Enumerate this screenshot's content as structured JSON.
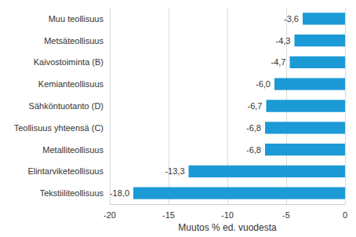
{
  "chart_data": {
    "type": "bar",
    "orientation": "horizontal",
    "categories": [
      "Muu teollisuus",
      "Metsäteollisuus",
      "Kaivostoiminta (B)",
      "Kemianteollisuus",
      "Sähköntuotanto (D)",
      "Teollisuus yhteensä (C)",
      "Metalliteollisuus",
      "Elintarviketeollisuus",
      "Tekstiiliteollisuus"
    ],
    "values": [
      -3.6,
      -4.3,
      -4.7,
      -6.0,
      -6.7,
      -6.8,
      -6.8,
      -13.3,
      -18.0
    ],
    "value_labels": [
      "-3,6",
      "-4,3",
      "-4,7",
      "-6,0",
      "-6,7",
      "-6,8",
      "-6,8",
      "-13,3",
      "-18,0"
    ],
    "data_labels": true,
    "color": "#1c9ad6",
    "xlabel": "Muutos % ed. vuodesta",
    "xlim": [
      -20,
      0
    ],
    "xticks": [
      -20,
      -15,
      -10,
      -5,
      0
    ],
    "grid": true
  }
}
